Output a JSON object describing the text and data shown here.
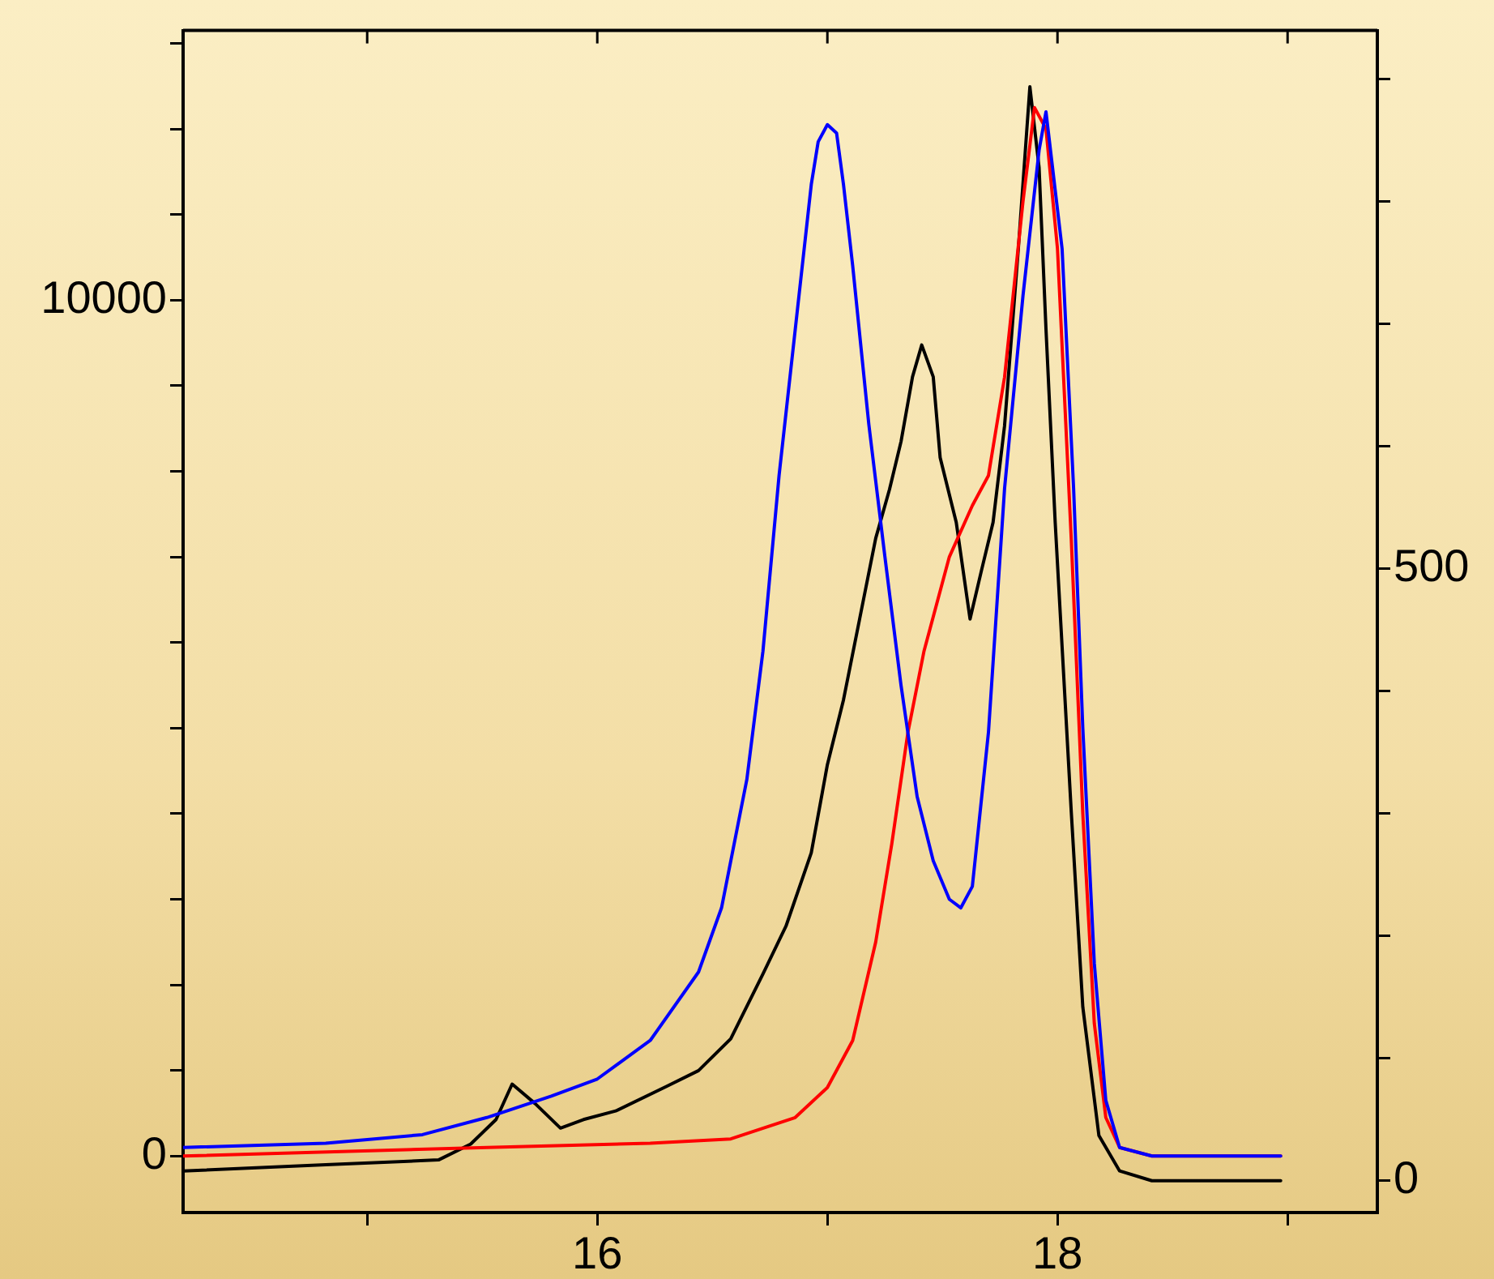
{
  "chart_data": {
    "type": "line",
    "xlim": [
      14.2,
      19.39
    ],
    "xticks": [
      {
        "value": 15,
        "label": null
      },
      16,
      {
        "value": 17,
        "label": null
      },
      18,
      {
        "value": 19,
        "label": null
      }
    ],
    "ylim": [
      -660,
      13150
    ],
    "yticks": [
      0,
      {
        "value": 1000,
        "label": null
      },
      {
        "value": 2000,
        "label": null
      },
      {
        "value": 3000,
        "label": null
      },
      {
        "value": 4000,
        "label": null
      },
      {
        "value": 5000,
        "label": null
      },
      {
        "value": 6000,
        "label": null
      },
      {
        "value": 7000,
        "label": null
      },
      {
        "value": 8000,
        "label": null
      },
      {
        "value": 9000,
        "label": null
      },
      10000,
      {
        "value": 11000,
        "label": null
      },
      {
        "value": 12000,
        "label": null
      },
      {
        "value": 13000,
        "label": null
      }
    ],
    "y2lim": [
      -26,
      940
    ],
    "y2ticks": [
      0,
      {
        "value": 100,
        "label": null
      },
      {
        "value": 200,
        "label": null
      },
      {
        "value": 300,
        "label": null
      },
      {
        "value": 400,
        "label": null
      },
      500,
      {
        "value": 600,
        "label": null
      },
      {
        "value": 700,
        "label": null
      },
      {
        "value": 800,
        "label": null
      },
      {
        "value": 900,
        "label": null
      }
    ],
    "grid": false,
    "legend": false,
    "marker": "none",
    "line_style": "solid",
    "series": [
      {
        "color": "#0000ff",
        "x": [
          14.2,
          14.82,
          15.24,
          15.52,
          15.8,
          16.0,
          16.23,
          16.44,
          16.54,
          16.65,
          16.72,
          16.79,
          16.86,
          16.93,
          16.96,
          17.0,
          17.04,
          17.07,
          17.11,
          17.18,
          17.25,
          17.32,
          17.39,
          17.46,
          17.53,
          17.58,
          17.63,
          17.7,
          17.77,
          17.85,
          17.92,
          17.95,
          18.02,
          18.07,
          18.11,
          18.16,
          18.21,
          18.27,
          18.41,
          18.97
        ],
        "values": [
          100,
          150,
          250,
          450,
          700,
          900,
          1350,
          2150,
          2900,
          4400,
          5900,
          7950,
          9650,
          11350,
          11850,
          12050,
          11950,
          11350,
          10400,
          8550,
          7000,
          5500,
          4200,
          3450,
          3000,
          2900,
          3150,
          4950,
          7800,
          10050,
          11750,
          12200,
          10600,
          7800,
          5000,
          2250,
          650,
          100,
          0,
          0
        ]
      },
      {
        "color": "#ff0000",
        "x": [
          14.2,
          15.52,
          16.23,
          16.58,
          16.86,
          17.0,
          17.11,
          17.21,
          17.28,
          17.35,
          17.42,
          17.53,
          17.63,
          17.7,
          17.77,
          17.85,
          17.9,
          17.95,
          18.0,
          18.06,
          18.11,
          18.16,
          18.21,
          18.27,
          18.41,
          18.97
        ],
        "values": [
          0,
          100,
          150,
          200,
          450,
          800,
          1350,
          2500,
          3650,
          4950,
          5900,
          7000,
          7600,
          7950,
          9100,
          11150,
          12250,
          12000,
          10600,
          7200,
          4000,
          1550,
          450,
          100,
          0,
          0
        ]
      },
      {
        "color": "#000000",
        "axis": "y2",
        "x": [
          14.2,
          14.82,
          15.31,
          15.45,
          15.56,
          15.63,
          15.73,
          15.84,
          15.94,
          16.08,
          16.3,
          16.44,
          16.58,
          16.72,
          16.82,
          16.93,
          17.0,
          17.07,
          17.14,
          17.21,
          17.27,
          17.32,
          17.37,
          17.41,
          17.46,
          17.49,
          17.56,
          17.62,
          17.67,
          17.72,
          17.77,
          17.83,
          17.88,
          17.92,
          17.95,
          17.99,
          18.06,
          18.11,
          18.18,
          18.27,
          18.41,
          18.97
        ],
        "values": [
          8,
          13,
          17,
          30,
          50,
          79,
          63,
          43,
          50,
          57,
          77,
          90,
          116,
          169,
          208,
          268,
          340,
          393,
          459,
          525,
          565,
          604,
          657,
          683,
          657,
          591,
          538,
          459,
          499,
          538,
          617,
          762,
          894,
          828,
          696,
          538,
          301,
          142,
          37,
          8,
          0,
          0
        ]
      }
    ]
  }
}
